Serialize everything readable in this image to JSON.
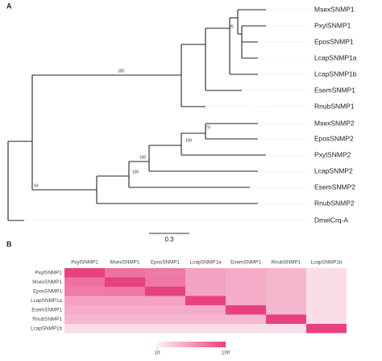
{
  "tree": {
    "panel_label": "A",
    "leaves": [
      {
        "label": "MsexSNMP1",
        "color": "#111111"
      },
      {
        "label": "PxylSNMP1",
        "color": "#9b30d0"
      },
      {
        "label": "EposSNMP1",
        "color": "#6fcf2a"
      },
      {
        "label": "LcapSNMP1a",
        "color": "#e82020"
      },
      {
        "label": "LcapSNMP1b",
        "color": "#e82020"
      },
      {
        "label": "EsemSNMP1",
        "color": "#2445e0"
      },
      {
        "label": "RnubSNMP1",
        "color": "#b8680a"
      },
      {
        "label": "MsexSNMP2",
        "color": "#111111"
      },
      {
        "label": "EposSNMP2",
        "color": "#6fcf2a"
      },
      {
        "label": "PxylSNMP2",
        "color": "#9b30d0"
      },
      {
        "label": "LcapSNMP2",
        "color": "#e82020"
      },
      {
        "label": "EsemSNMP2",
        "color": "#2445e0"
      },
      {
        "label": "RnubSNMP2",
        "color": "#b8680a"
      },
      {
        "label": "DmelCrq-A",
        "color": "#111111"
      }
    ],
    "bootstrap": [
      85,
      100,
      79,
      100,
      100,
      100,
      64
    ],
    "scale_label": "0.3"
  },
  "chart_data": {
    "type": "heatmap",
    "panel_label": "B",
    "rows": [
      "PxylSNMP1",
      "MsexSNMP1",
      "EposSNMP1",
      "LcapSNMP1a",
      "EsemSNMP1",
      "RnubSNMP1",
      "LcapSNMP1b"
    ],
    "columns": [
      "PxylSNMP1",
      "MsexSNMP1",
      "EposSNMP1",
      "LcapSNMP1a",
      "EsemSNMP1",
      "RnubSNMP1",
      "LcapSNMP1b"
    ],
    "values": [
      [
        100,
        75,
        70,
        50,
        45,
        40,
        20
      ],
      [
        75,
        100,
        72,
        50,
        45,
        40,
        20
      ],
      [
        70,
        72,
        100,
        50,
        45,
        40,
        20
      ],
      [
        50,
        50,
        50,
        100,
        45,
        40,
        20
      ],
      [
        45,
        45,
        45,
        45,
        100,
        40,
        20
      ],
      [
        40,
        40,
        40,
        40,
        40,
        100,
        20
      ],
      [
        20,
        20,
        20,
        20,
        20,
        20,
        100
      ]
    ],
    "zlim": [
      10,
      100
    ],
    "zticks": [
      10,
      100
    ],
    "colors": [
      "#fdf0f6",
      "#e8417f"
    ]
  }
}
